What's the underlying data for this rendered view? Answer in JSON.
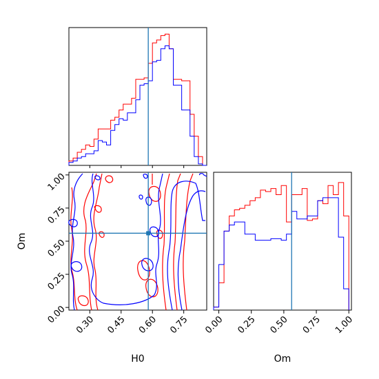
{
  "chart_data": [
    {
      "type": "histogram",
      "panel": "H0 marginal",
      "x_range": [
        0.2,
        0.86
      ],
      "x_ticks": [
        0.3,
        0.45,
        0.6,
        0.75
      ],
      "y_ticks": [],
      "reference_line": 0.58,
      "bin_edges": [
        0.2,
        0.22,
        0.24,
        0.26,
        0.28,
        0.3,
        0.32,
        0.34,
        0.36,
        0.38,
        0.4,
        0.42,
        0.44,
        0.46,
        0.48,
        0.5,
        0.52,
        0.54,
        0.56,
        0.58,
        0.6,
        0.62,
        0.64,
        0.66,
        0.68,
        0.7,
        0.72,
        0.74,
        0.76,
        0.78,
        0.8,
        0.82,
        0.84,
        0.86
      ],
      "series": [
        {
          "color": "#ff0000",
          "counts": [
            3,
            5,
            9,
            11,
            14,
            13,
            18,
            25,
            25,
            25,
            31,
            33,
            38,
            42,
            42,
            46,
            59,
            59,
            60,
            70,
            84,
            86,
            89,
            90,
            80,
            59,
            59,
            58,
            58,
            35,
            20,
            6,
            0
          ]
        },
        {
          "color": "#0000ff",
          "counts": [
            2,
            3,
            5,
            6,
            8,
            8,
            10,
            17,
            16,
            14,
            24,
            28,
            32,
            31,
            36,
            36,
            45,
            55,
            56,
            58,
            71,
            72,
            80,
            82,
            80,
            55,
            55,
            38,
            38,
            20,
            6,
            1,
            0
          ]
        }
      ]
    },
    {
      "type": "contour",
      "panel": "H0 vs Om joint",
      "xlabel": "H0",
      "ylabel": "Om",
      "x_range": [
        0.2,
        0.86
      ],
      "y_range": [
        -0.02,
        1.02
      ],
      "x_ticks": [
        0.3,
        0.45,
        0.6,
        0.75
      ],
      "y_ticks": [
        0.0,
        0.25,
        0.5,
        0.75,
        1.0
      ],
      "x_tick_labels": [
        "0.30",
        "0.45",
        "0.60",
        "0.75"
      ],
      "y_tick_labels": [
        "0.00",
        "0.25",
        "0.50",
        "0.75",
        "1.00"
      ],
      "reference_point": [
        0.58,
        0.56
      ],
      "series": [
        {
          "color": "#ff0000",
          "levels": 3
        },
        {
          "color": "#0000ff",
          "levels": 2
        }
      ]
    },
    {
      "type": "histogram",
      "panel": "Om marginal",
      "xlabel": "Om",
      "x_range": [
        -0.04,
        1.02
      ],
      "x_ticks": [
        0.0,
        0.25,
        0.5,
        0.75,
        1.0
      ],
      "x_tick_labels": [
        "0.00",
        "0.25",
        "0.50",
        "0.75",
        "1.00"
      ],
      "y_ticks": [],
      "reference_line": 0.56,
      "bin_edges": [
        -0.04,
        0.0,
        0.04,
        0.08,
        0.12,
        0.16,
        0.2,
        0.24,
        0.28,
        0.32,
        0.36,
        0.4,
        0.44,
        0.48,
        0.52,
        0.56,
        0.6,
        0.64,
        0.68,
        0.72,
        0.76,
        0.8,
        0.84,
        0.88,
        0.92,
        0.96,
        1.0
      ],
      "series": [
        {
          "color": "#ff0000",
          "counts": [
            2,
            18,
            52,
            62,
            66,
            67,
            69,
            72,
            74,
            79,
            78,
            80,
            76,
            82,
            58,
            76,
            76,
            80,
            59,
            60,
            72,
            70,
            82,
            76,
            84,
            62
          ]
        },
        {
          "color": "#0000ff",
          "counts": [
            2,
            30,
            52,
            56,
            58,
            58,
            50,
            50,
            46,
            46,
            46,
            47,
            47,
            46,
            50,
            65,
            60,
            60,
            62,
            62,
            72,
            74,
            74,
            74,
            48,
            14
          ]
        }
      ]
    }
  ]
}
